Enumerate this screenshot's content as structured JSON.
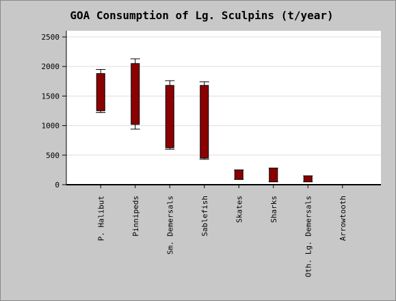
{
  "chart_data": {
    "type": "box",
    "title": "GOA Consumption of Lg. Sculpins (t/year)",
    "categories": [
      "P. Halibut",
      "Pinnipeds",
      "Sm. Demersals",
      "Sablefish",
      "Skates",
      "Sharks",
      "Oth. Lg. Demersals",
      "Arrowtooth"
    ],
    "low": [
      1220,
      940,
      600,
      430,
      90,
      50,
      50,
      0
    ],
    "box_low": [
      1250,
      1020,
      625,
      450,
      90,
      50,
      50,
      0
    ],
    "box_high": [
      1880,
      2050,
      1680,
      1680,
      250,
      280,
      150,
      0
    ],
    "high": [
      1950,
      2130,
      1760,
      1740,
      250,
      280,
      150,
      0
    ],
    "color": "#8b0000",
    "ylim": [
      0,
      2500
    ],
    "yticks": [
      0,
      500,
      1000,
      1500,
      2000,
      2500
    ],
    "grid": true
  }
}
